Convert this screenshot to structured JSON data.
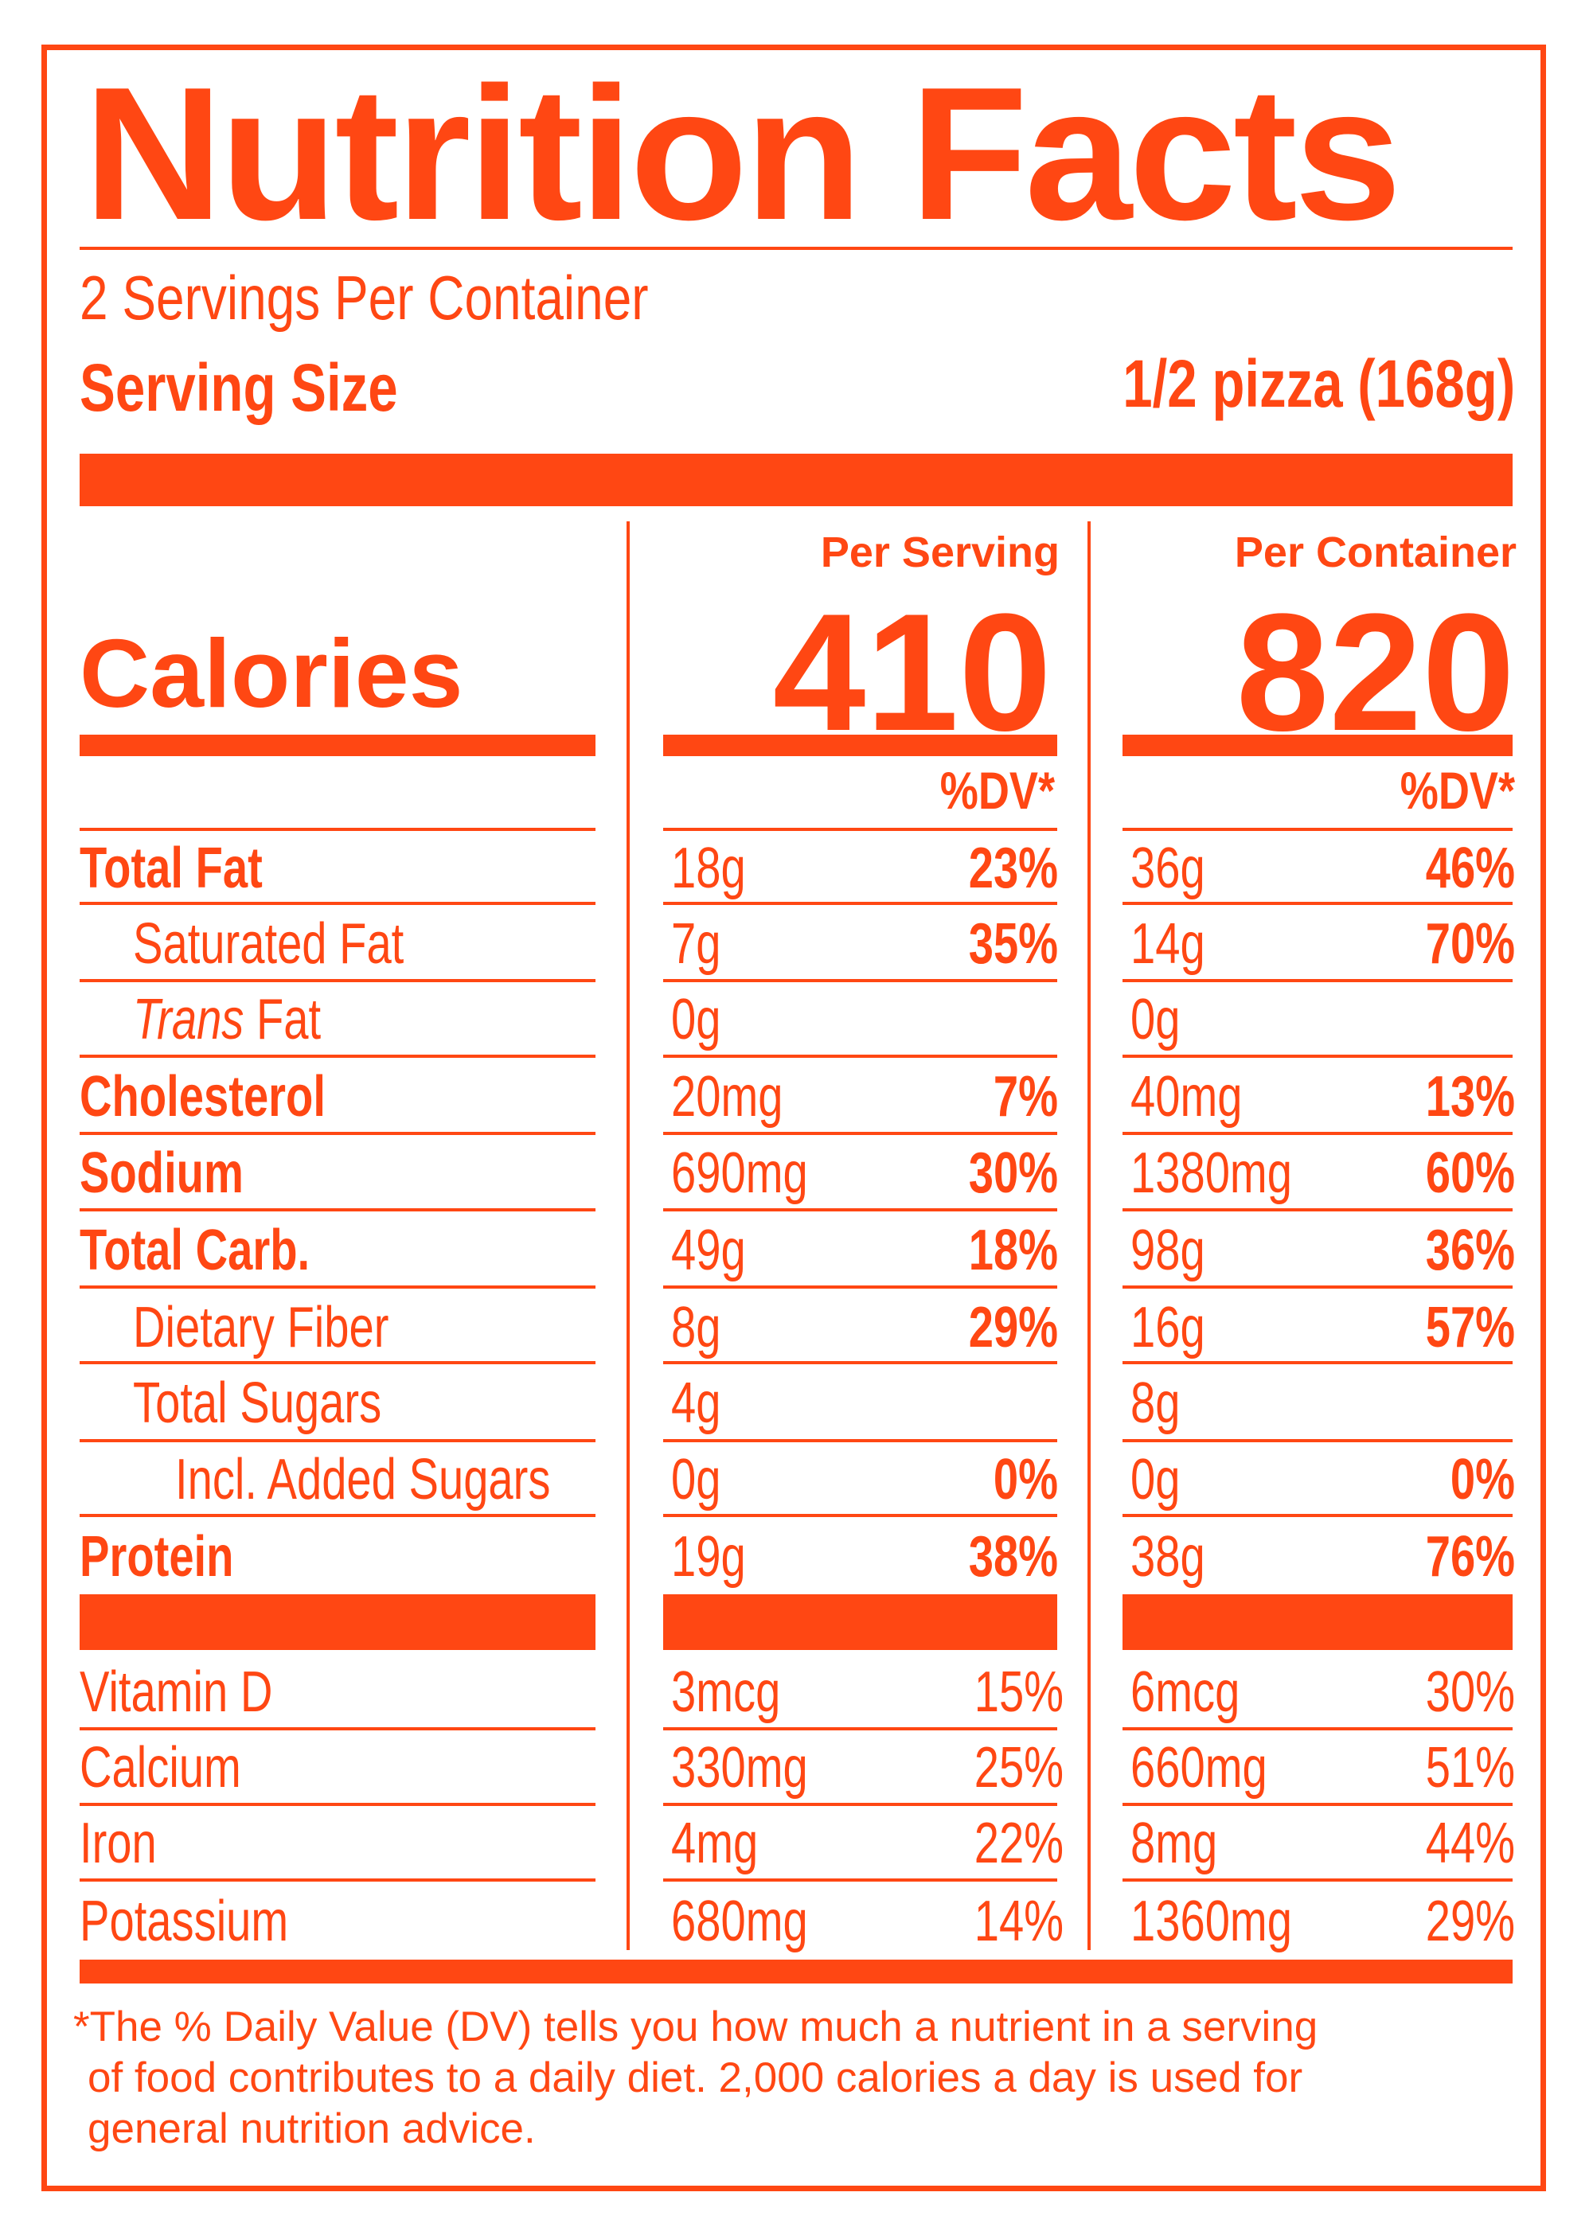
{
  "title": "Nutrition Facts",
  "servings_per_container": "2 Servings Per Container",
  "serving_size_label": "Serving Size",
  "serving_size_value": "1/2 pizza (168g)",
  "columns": {
    "per_serving": "Per Serving",
    "per_container": "Per Container"
  },
  "calories": {
    "label": "Calories",
    "per_serving": "410",
    "per_container": "820"
  },
  "dv_header": "%DV*",
  "nutrients": [
    {
      "name": "Total Fat",
      "serving_amount": "18g",
      "serving_dv": "23%",
      "container_amount": "36g",
      "container_dv": "46%"
    },
    {
      "name": "Saturated Fat",
      "serving_amount": "7g",
      "serving_dv": "35%",
      "container_amount": "14g",
      "container_dv": "70%"
    },
    {
      "name_italic": "Trans",
      "name_rest": " Fat",
      "serving_amount": "0g",
      "serving_dv": "",
      "container_amount": "0g",
      "container_dv": ""
    },
    {
      "name": "Cholesterol",
      "serving_amount": "20mg",
      "serving_dv": "7%",
      "container_amount": "40mg",
      "container_dv": "13%"
    },
    {
      "name": "Sodium",
      "serving_amount": "690mg",
      "serving_dv": "30%",
      "container_amount": "1380mg",
      "container_dv": "60%"
    },
    {
      "name": "Total Carb.",
      "serving_amount": "49g",
      "serving_dv": "18%",
      "container_amount": "98g",
      "container_dv": "36%"
    },
    {
      "name": "Dietary Fiber",
      "serving_amount": "8g",
      "serving_dv": "29%",
      "container_amount": "16g",
      "container_dv": "57%"
    },
    {
      "name": "Total Sugars",
      "serving_amount": "4g",
      "serving_dv": "",
      "container_amount": "8g",
      "container_dv": ""
    },
    {
      "name": "Incl. Added Sugars",
      "serving_amount": "0g",
      "serving_dv": "0%",
      "container_amount": "0g",
      "container_dv": "0%"
    },
    {
      "name": "Protein",
      "serving_amount": "19g",
      "serving_dv": "38%",
      "container_amount": "38g",
      "container_dv": "76%"
    }
  ],
  "vitamins": [
    {
      "name": "Vitamin D",
      "serving_amount": "3mcg",
      "serving_dv": "15%",
      "container_amount": "6mcg",
      "container_dv": "30%"
    },
    {
      "name": "Calcium",
      "serving_amount": "330mg",
      "serving_dv": "25%",
      "container_amount": "660mg",
      "container_dv": "51%"
    },
    {
      "name": "Iron",
      "serving_amount": "4mg",
      "serving_dv": "22%",
      "container_amount": "8mg",
      "container_dv": "44%"
    },
    {
      "name": "Potassium",
      "serving_amount": "680mg",
      "serving_dv": "14%",
      "container_amount": "1360mg",
      "container_dv": "29%"
    }
  ],
  "footnote": [
    "*The % Daily Value (DV) tells you how much a nutrient in a serving",
    "of food contributes to a daily diet. 2,000 calories a day is used for",
    "general nutrition advice."
  ],
  "colors": {
    "accent": "#FF4713",
    "background": "#FFFFFF"
  }
}
